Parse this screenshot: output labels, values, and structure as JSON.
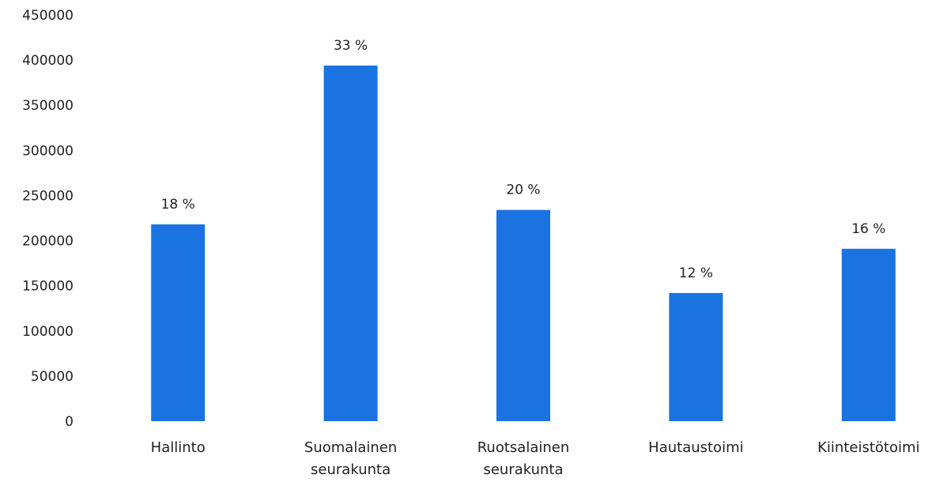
{
  "chart_data": {
    "type": "bar",
    "categories": [
      [
        "Hallinto"
      ],
      [
        "Suomalainen",
        "seurakunta"
      ],
      [
        "Ruotsalainen",
        "seurakunta"
      ],
      [
        "Hautaustoimi"
      ],
      [
        "Kiinteistötoimi"
      ]
    ],
    "values": [
      218000,
      394000,
      234000,
      142000,
      191000
    ],
    "data_labels": [
      "18 %",
      "33 %",
      "20 %",
      "12 %",
      "16 %"
    ],
    "ylim": [
      0,
      450000
    ],
    "yticks": [
      "0",
      "50000",
      "100000",
      "150000",
      "200000",
      "250000",
      "300000",
      "350000",
      "400000",
      "450000"
    ],
    "bar_color": "#1a73e0",
    "grid": false,
    "legend": "none"
  }
}
